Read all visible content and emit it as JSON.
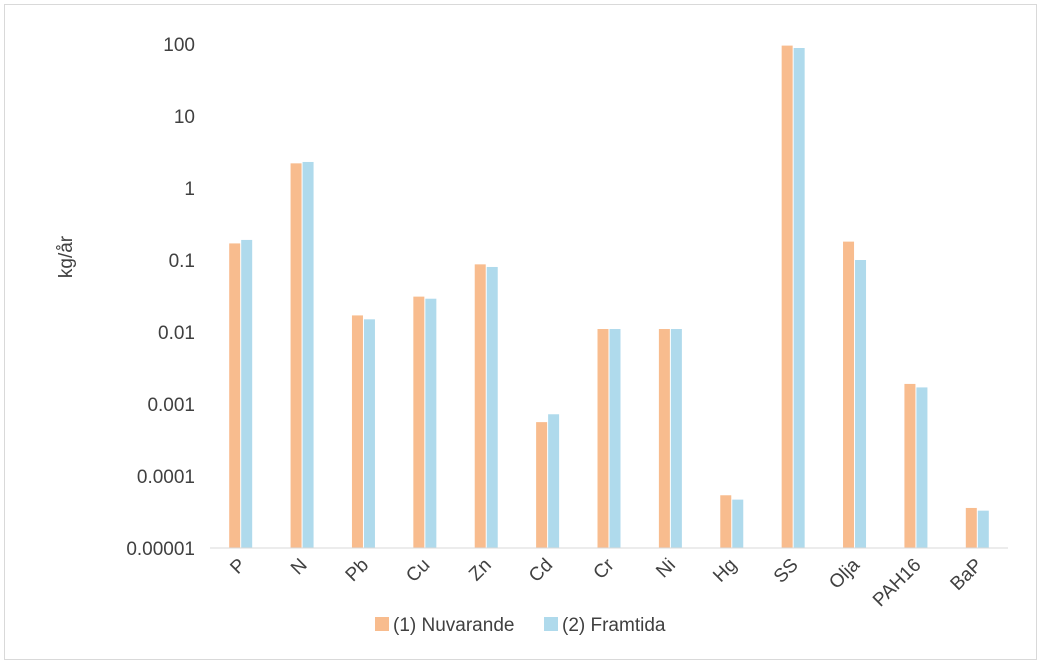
{
  "chart_data": {
    "type": "bar",
    "title": "",
    "xlabel": "",
    "ylabel": "kg/år",
    "yscale": "log",
    "ylim": [
      1e-05,
      100
    ],
    "yticks": [
      "0.00001",
      "0.0001",
      "0.001",
      "0.01",
      "0.1",
      "1",
      "10",
      "100"
    ],
    "grid": false,
    "legend_position": "bottom",
    "categories": [
      "P",
      "N",
      "Pb",
      "Cu",
      "Zn",
      "Cd",
      "Cr",
      "Ni",
      "Hg",
      "SS",
      "Olja",
      "PAH16",
      "BaP"
    ],
    "series": [
      {
        "name": "(1) Nuvarande",
        "color": "#F8BC8E",
        "values": [
          0.17,
          2.2,
          0.017,
          0.031,
          0.087,
          0.00056,
          0.011,
          0.011,
          5.4e-05,
          95,
          0.18,
          0.0019,
          3.6e-05
        ]
      },
      {
        "name": "(2) Framtida",
        "color": "#AFDAEC",
        "values": [
          0.19,
          2.3,
          0.015,
          0.029,
          0.08,
          0.00072,
          0.011,
          0.011,
          4.7e-05,
          88,
          0.1,
          0.0017,
          3.3e-05
        ]
      }
    ]
  }
}
